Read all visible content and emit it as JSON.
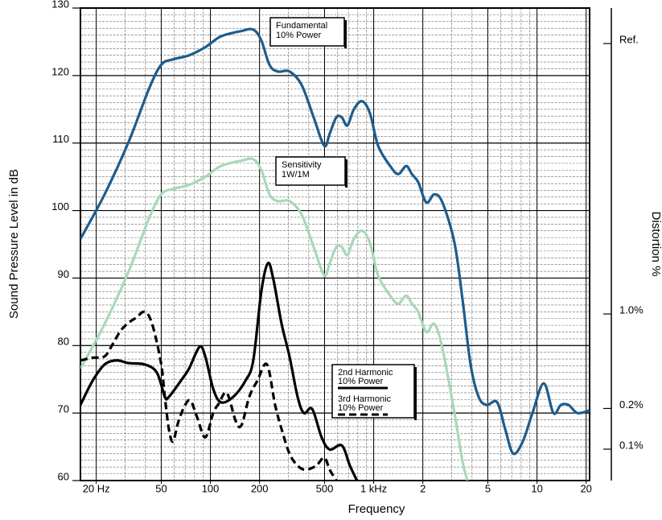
{
  "chart_data": {
    "type": "line",
    "x_label": "Frequency",
    "y_label": "Sound Pressure Level in dB",
    "y2_label": "Distortion %",
    "xlim": [
      16,
      21000
    ],
    "xlog": true,
    "xticks": [
      {
        "value": 20,
        "label": "20 Hz"
      },
      50,
      100,
      200,
      500,
      {
        "value": 1000,
        "label": "1 kHz"
      },
      {
        "value": 2000,
        "label": "2"
      },
      {
        "value": 5000,
        "label": "5"
      },
      {
        "value": 10000,
        "label": "10"
      },
      {
        "value": 20000,
        "label": "20"
      }
    ],
    "ylim": [
      60,
      130
    ],
    "yticks": [
      60,
      70,
      80,
      90,
      100,
      110,
      120,
      130
    ],
    "y2lim": [
      0.0586,
      183
    ],
    "y2log": true,
    "y2ticks": [
      {
        "value": 100,
        "label": "Ref."
      },
      {
        "value": 1,
        "label": "1.0%"
      },
      {
        "value": 0.2,
        "label": "0.2%"
      },
      {
        "value": 0.1,
        "label": "0.1%"
      }
    ],
    "grid": true,
    "minor_grid": true,
    "series": [
      {
        "label_lines": [
          "Fundamental",
          "10% Power"
        ],
        "color": "#1f5c8b",
        "dash": false,
        "x": [
          16,
          22.5,
          31.6,
          42,
          50,
          59,
          74,
          93,
          116,
          155,
          183,
          205,
          230,
          258,
          305,
          362,
          429,
          498,
          538,
          590,
          638,
          690,
          756,
          848,
          949,
          1064,
          1261,
          1413,
          1582,
          1714,
          1874,
          2100,
          2351,
          2635,
          3125,
          3500,
          3920,
          4390,
          4920,
          5700,
          6390,
          7150,
          8190,
          9380,
          11000,
          12600,
          14000,
          15600,
          17700,
          21000
        ],
        "values": [
          95.8,
          102.4,
          110.2,
          118,
          121.6,
          122.4,
          123,
          124.2,
          125.8,
          126.6,
          126.8,
          125.2,
          121.6,
          120.6,
          120.6,
          118.6,
          113.8,
          109.6,
          111.4,
          113.8,
          113.8,
          112.6,
          115,
          116.2,
          114.4,
          109.6,
          106.6,
          105.4,
          106.6,
          105.4,
          104.2,
          101.2,
          102.4,
          101.2,
          95.2,
          86.8,
          77.2,
          72.4,
          71.2,
          71.6,
          67.6,
          64,
          65.8,
          70,
          74.4,
          70,
          71.2,
          71.2,
          70,
          70.4
        ]
      },
      {
        "label_lines": [
          "Sensitivity",
          "1W/1M"
        ],
        "color": "#a9d8b8",
        "dash": false,
        "x": [
          16,
          22.5,
          31.6,
          42,
          50,
          59,
          74,
          93,
          116,
          155,
          183,
          205,
          230,
          258,
          305,
          362,
          429,
          498,
          538,
          590,
          638,
          690,
          756,
          848,
          949,
          1064,
          1261,
          1413,
          1582,
          1714,
          1874,
          2100,
          2351,
          2635,
          3125,
          3500,
          3750
        ],
        "values": [
          76.6,
          83.2,
          91,
          98.8,
          102.4,
          103.2,
          103.8,
          105,
          106.6,
          107.4,
          107.6,
          106,
          102.4,
          101.4,
          101.4,
          99.4,
          94.6,
          90.4,
          92.2,
          94.6,
          94.6,
          93.4,
          95.8,
          97,
          95.2,
          90.4,
          87.4,
          86.2,
          87.4,
          86.2,
          85,
          82,
          83.2,
          79.6,
          70,
          62.8,
          60
        ]
      },
      {
        "label_lines": [
          "2nd Harmonic",
          "10% Power"
        ],
        "color": "#000000",
        "dash": false,
        "x": [
          16,
          19,
          22.5,
          26.7,
          31.6,
          39.6,
          47,
          52.6,
          55.7,
          66,
          74,
          85.8,
          93,
          104,
          116,
          138,
          164,
          183,
          205,
          225,
          243,
          273,
          305,
          342,
          374,
          420,
          480,
          538,
          638,
          715,
          790
        ],
        "values": [
          71.2,
          74.8,
          77.2,
          77.8,
          77.4,
          77.2,
          76,
          72.4,
          72.4,
          74.8,
          76.6,
          79.8,
          78.4,
          73.6,
          71.6,
          72.4,
          74.8,
          77.8,
          88,
          92.2,
          89.8,
          83.2,
          78.4,
          72.4,
          70,
          70.6,
          66.4,
          64.6,
          65.2,
          62.2,
          60
        ]
      },
      {
        "label_lines": [
          "3rd Harmonic",
          "10% Power"
        ],
        "color": "#000000",
        "dash": true,
        "x": [
          16,
          19,
          22.5,
          25.2,
          28.2,
          31.6,
          35.4,
          38.8,
          42,
          45.4,
          50,
          52.6,
          55.7,
          59,
          63.8,
          70,
          75.7,
          82.9,
          93,
          104,
          112.6,
          126,
          143,
          155,
          173,
          194,
          222,
          249,
          273,
          305,
          342,
          383,
          444,
          498,
          538,
          590
        ],
        "values": [
          77.8,
          78.2,
          78.4,
          80.2,
          82.2,
          83.4,
          84.2,
          85,
          84.4,
          82,
          77.2,
          72.4,
          67.6,
          65.8,
          68.8,
          71.2,
          71.8,
          69.4,
          66.4,
          70,
          71.4,
          73,
          68.8,
          68.2,
          72.4,
          74.8,
          77.2,
          71.2,
          67.6,
          64,
          62.2,
          61.6,
          62.2,
          63.4,
          61.6,
          60
        ]
      }
    ]
  }
}
